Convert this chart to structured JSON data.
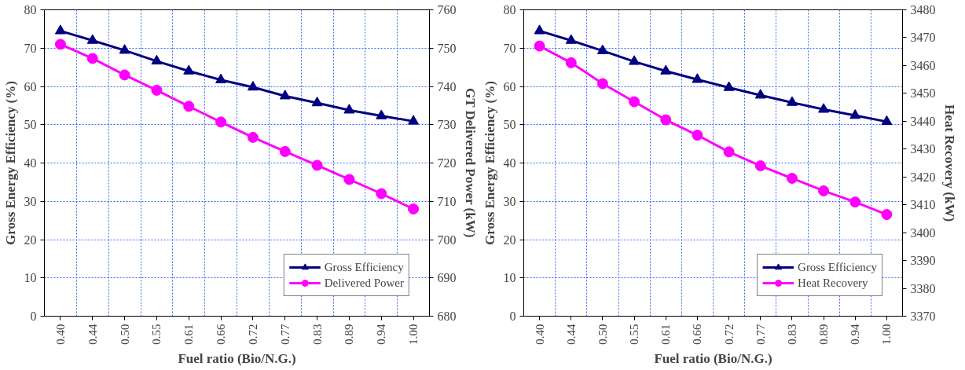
{
  "chart_data": [
    {
      "type": "line",
      "categories": [
        "0.40",
        "0.44",
        "0.50",
        "0.55",
        "0.61",
        "0.66",
        "0.72",
        "0.77",
        "0.83",
        "0.89",
        "0.94",
        "1.00"
      ],
      "xlabel": "Fuel ratio (Bio/N.G.)",
      "ylabel": "Gross Energy Efficiency (%)",
      "y2label": "GT Delivered Power (kW)",
      "ylim": [
        0,
        80
      ],
      "yticks": [
        0,
        10,
        20,
        30,
        40,
        50,
        60,
        70,
        80
      ],
      "y2lim": [
        680,
        760
      ],
      "y2ticks": [
        680,
        690,
        700,
        710,
        720,
        730,
        740,
        750,
        760
      ],
      "grid": true,
      "legend": "bottom right",
      "line_style": "solid",
      "series": [
        {
          "name": "Gross Efficiency",
          "color": "#000080",
          "marker": "triangle",
          "values": [
            74.5,
            72.0,
            69.4,
            66.6,
            64.0,
            61.7,
            59.8,
            57.5,
            55.7,
            53.8,
            52.3,
            50.9
          ]
        },
        {
          "name": "Delivered Power",
          "color": "#ff00ff",
          "marker": "circle",
          "axis": "y2",
          "values": [
            751.0,
            747.3,
            743.0,
            739.0,
            734.8,
            730.7,
            726.7,
            723.0,
            719.4,
            715.7,
            712.0,
            708.0
          ]
        }
      ]
    },
    {
      "type": "line",
      "categories": [
        "0.40",
        "0.44",
        "0.50",
        "0.55",
        "0.61",
        "0.66",
        "0.72",
        "0.77",
        "0.83",
        "0.89",
        "0.94",
        "1.00"
      ],
      "xlabel": "Fuel ratio (Bio/N.G.)",
      "ylabel": "Gross Energy Efficiency (%)",
      "y2label": "Heat Recovery (kW)",
      "ylim": [
        0,
        80
      ],
      "yticks": [
        0,
        10,
        20,
        30,
        40,
        50,
        60,
        70,
        80
      ],
      "y2lim": [
        3370,
        3480
      ],
      "y2ticks": [
        3370,
        3380,
        3390,
        3400,
        3410,
        3420,
        3430,
        3440,
        3450,
        3460,
        3470,
        3480
      ],
      "grid": true,
      "legend": "bottom right",
      "line_style": "solid",
      "series": [
        {
          "name": "Gross Efficiency",
          "color": "#000080",
          "marker": "triangle",
          "values": [
            74.5,
            72.0,
            69.3,
            66.5,
            64.0,
            61.8,
            59.7,
            57.7,
            55.8,
            54.0,
            52.4,
            50.8
          ]
        },
        {
          "name": "Heat Recovery",
          "color": "#ff00ff",
          "marker": "circle",
          "axis": "y2",
          "values": [
            3467,
            3461,
            3453.5,
            3447,
            3440.5,
            3435,
            3429,
            3424,
            3419.5,
            3415,
            3411,
            3406.5
          ]
        }
      ]
    }
  ]
}
